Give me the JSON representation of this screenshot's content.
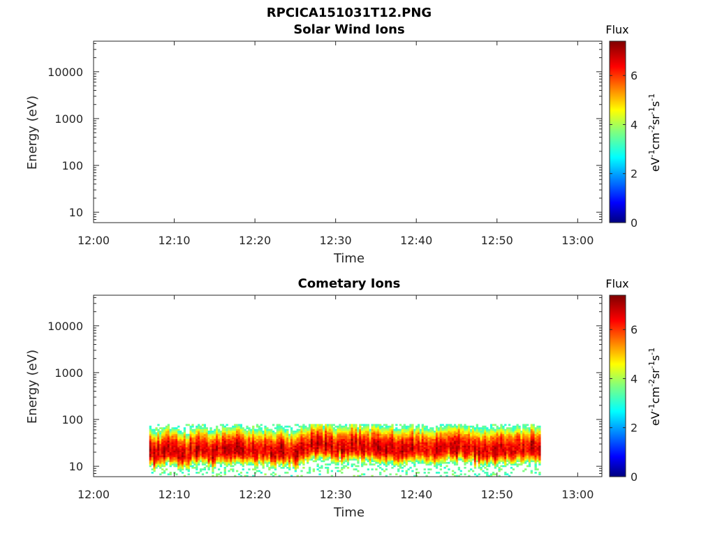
{
  "figure_title": "RPCICA151031T12.PNG",
  "colorbar": {
    "title": "Flux",
    "label_main": "eV",
    "label_sup1": "-1",
    "label_cm": "cm",
    "label_sup2": "-2",
    "label_sr": "sr",
    "label_sup3": "-1",
    "label_s": "s",
    "label_sup4": "-1",
    "ticks": [
      "0",
      "2",
      "4",
      "6"
    ],
    "range": [
      0,
      7.4
    ],
    "colormap": "jet"
  },
  "chart_data": [
    {
      "type": "heatmap",
      "title": "Solar Wind Ions",
      "xlabel": "Time",
      "ylabel": "Energy (eV)",
      "x_ticks": [
        "12:00",
        "12:10",
        "12:20",
        "12:30",
        "12:40",
        "12:50",
        "13:00"
      ],
      "y_ticks": [
        "10",
        "100",
        "1000",
        "10000"
      ],
      "y_scale": "log",
      "xlim_minutes": [
        0,
        63
      ],
      "ylim": [
        6,
        45000
      ],
      "data": []
    },
    {
      "type": "heatmap",
      "title": "Cometary Ions",
      "xlabel": "Time",
      "ylabel": "Energy (eV)",
      "x_ticks": [
        "12:00",
        "12:10",
        "12:20",
        "12:30",
        "12:40",
        "12:50",
        "13:00"
      ],
      "y_ticks": [
        "10",
        "100",
        "1000",
        "10000"
      ],
      "y_scale": "log",
      "xlim_minutes": [
        0,
        63
      ],
      "ylim": [
        6,
        45000
      ],
      "data_time_range_minutes": [
        6.9,
        55.2
      ],
      "data_energy_range_eV": [
        6,
        80
      ],
      "peak_energy_profile": [
        {
          "t": 7,
          "e": 18
        },
        {
          "t": 9,
          "e": 22
        },
        {
          "t": 11,
          "e": 17
        },
        {
          "t": 13,
          "e": 22
        },
        {
          "t": 15,
          "e": 20
        },
        {
          "t": 17,
          "e": 24
        },
        {
          "t": 19,
          "e": 22
        },
        {
          "t": 22,
          "e": 20
        },
        {
          "t": 25,
          "e": 19
        },
        {
          "t": 27,
          "e": 30
        },
        {
          "t": 30,
          "e": 24
        },
        {
          "t": 33,
          "e": 26
        },
        {
          "t": 36,
          "e": 22
        },
        {
          "t": 39,
          "e": 24
        },
        {
          "t": 42,
          "e": 22
        },
        {
          "t": 45,
          "e": 26
        },
        {
          "t": 48,
          "e": 20
        },
        {
          "t": 51,
          "e": 22
        },
        {
          "t": 55,
          "e": 24
        }
      ]
    }
  ]
}
